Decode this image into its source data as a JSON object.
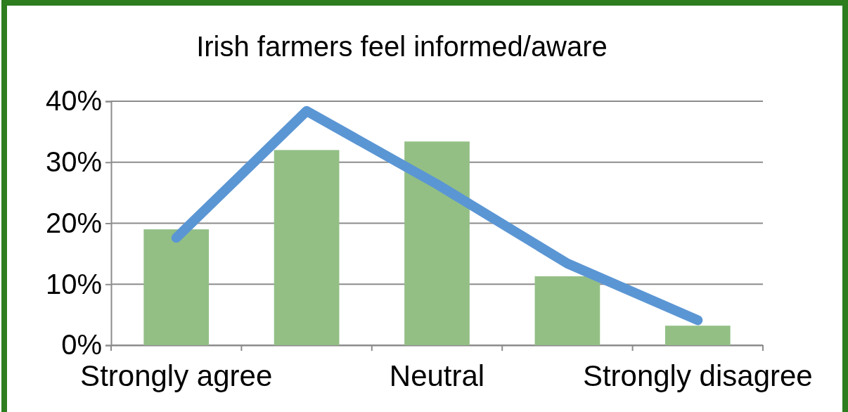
{
  "chart_data": {
    "type": "bar",
    "title": "Irish farmers feel informed/aware",
    "categories": [
      "Strongly agree",
      null,
      "Neutral",
      null,
      "Strongly disagree"
    ],
    "series": [
      {
        "color": "#93bf85",
        "values": [
          19,
          32,
          33.4,
          11.3,
          3.2
        ]
      },
      {
        "type": "line",
        "color": "#5b96d4",
        "values": [
          17.6,
          38.4,
          26.4,
          13.4,
          4.1
        ]
      }
    ],
    "ylim": [
      0,
      40
    ],
    "yticks": [
      {
        "value": 0,
        "label": "0%"
      },
      {
        "value": 10,
        "label": "10%"
      },
      {
        "value": 20,
        "label": "20%"
      },
      {
        "value": 30,
        "label": "30%"
      },
      {
        "value": 40,
        "label": "40%"
      }
    ],
    "grid": "y",
    "marker": "none",
    "line_style": "solid"
  }
}
